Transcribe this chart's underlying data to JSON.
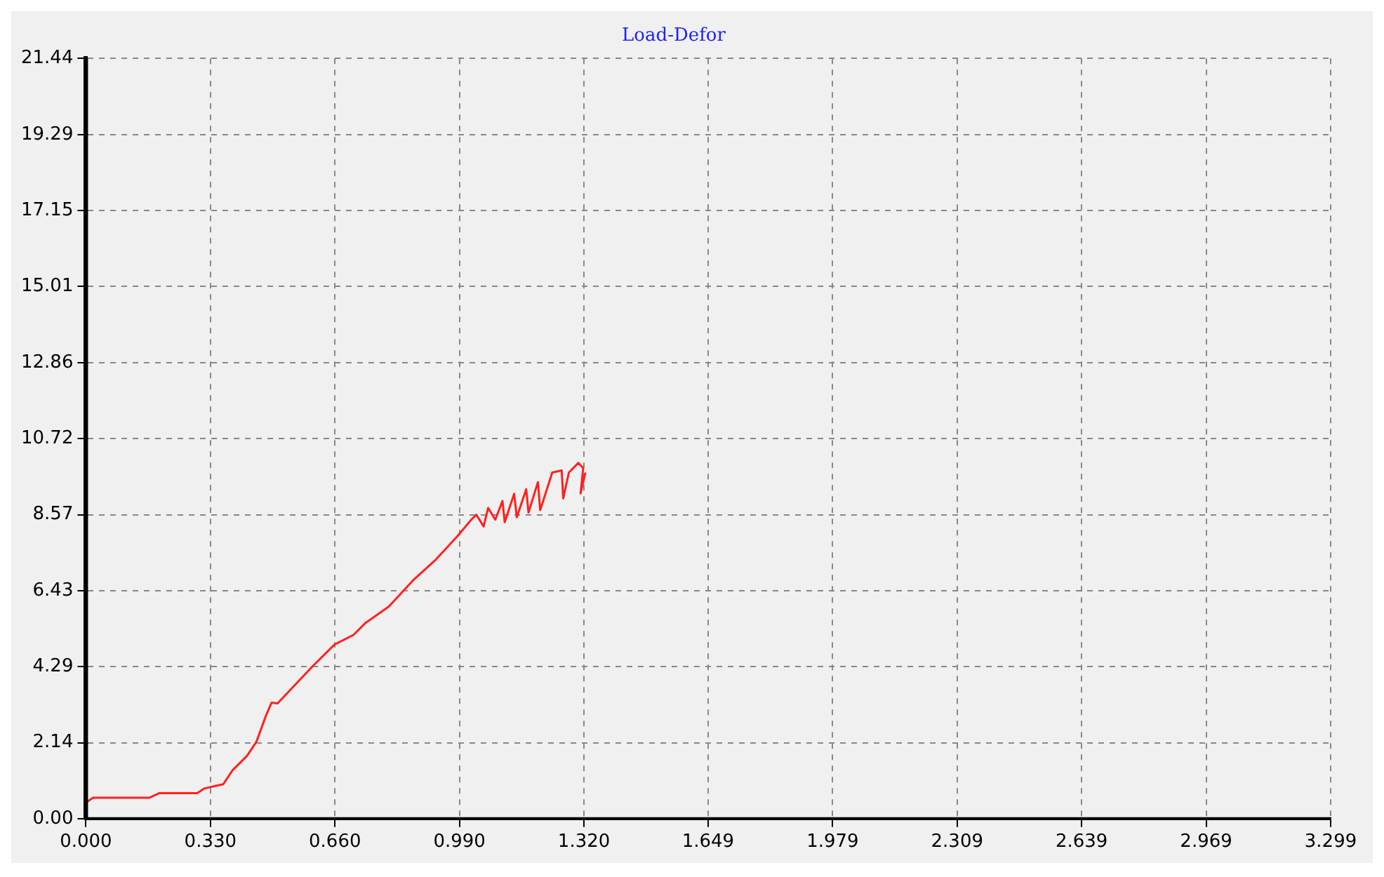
{
  "chart_data": {
    "type": "line",
    "title": "Load-Defor",
    "x": [
      0,
      0.019,
      0.169,
      0.195,
      0.295,
      0.314,
      0.339,
      0.364,
      0.389,
      0.427,
      0.452,
      0.477,
      0.492,
      0.508,
      0.602,
      0.659,
      0.709,
      0.74,
      0.803,
      0.866,
      0.928,
      0.985,
      1.022,
      1.035,
      1.054,
      1.066,
      1.085,
      1.104,
      1.11,
      1.135,
      1.142,
      1.167,
      1.173,
      1.198,
      1.204,
      1.236,
      1.261,
      1.265,
      1.28,
      1.305,
      1.318,
      1.311,
      1.324
    ],
    "series": [
      {
        "color": "#ff2020",
        "values": [
          0.45,
          0.59,
          0.59,
          0.72,
          0.72,
          0.85,
          0.91,
          0.97,
          1.37,
          1.77,
          2.17,
          2.9,
          3.27,
          3.25,
          4.31,
          4.91,
          5.18,
          5.51,
          5.98,
          6.71,
          7.31,
          7.97,
          8.44,
          8.57,
          8.24,
          8.76,
          8.43,
          8.96,
          8.36,
          9.16,
          8.5,
          9.29,
          8.63,
          9.49,
          8.7,
          9.76,
          9.82,
          9.03,
          9.76,
          10.03,
          9.89,
          9.17,
          9.76
        ]
      }
    ],
    "xlim": [
      0,
      3.299
    ],
    "xticks": [
      {
        "value": 0,
        "label": "0.000"
      },
      {
        "value": 0.33,
        "label": "0.330"
      },
      {
        "value": 0.66,
        "label": "0.660"
      },
      {
        "value": 0.99,
        "label": "0.990"
      },
      {
        "value": 1.32,
        "label": "1.320"
      },
      1.649,
      1.979,
      2.309,
      2.639,
      2.969,
      3.299
    ],
    "ylim": [
      0,
      21.44
    ],
    "yticks": [
      {
        "value": 0,
        "label": "0.00"
      },
      2.14,
      4.29,
      6.43,
      8.57,
      10.72,
      12.86,
      15.01,
      17.15,
      19.29,
      21.44
    ],
    "grid": true,
    "line_style": "solid",
    "marker": "none",
    "legend": false
  }
}
